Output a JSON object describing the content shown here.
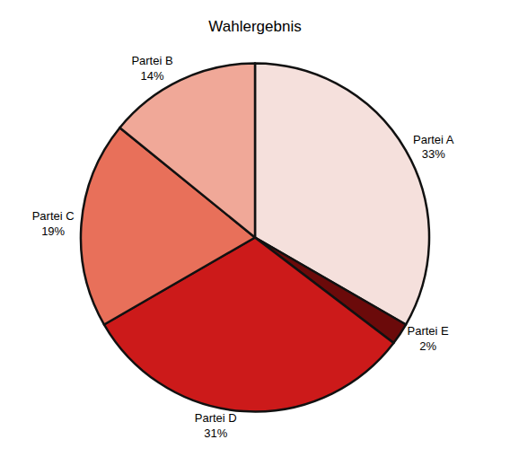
{
  "chart_data": {
    "type": "pie",
    "title": "Wahlergebnis",
    "categories": [
      "Partei A",
      "Partei E",
      "Partei D",
      "Partei C",
      "Partei B"
    ],
    "values": [
      33,
      2,
      31,
      19,
      14
    ],
    "value_labels": [
      "33%",
      "2%",
      "31%",
      "19%",
      "14%"
    ],
    "colors": [
      "#f5e0dc",
      "#6b0a0a",
      "#cc1a1a",
      "#e8705a",
      "#f0a898"
    ],
    "data_labels": true
  }
}
